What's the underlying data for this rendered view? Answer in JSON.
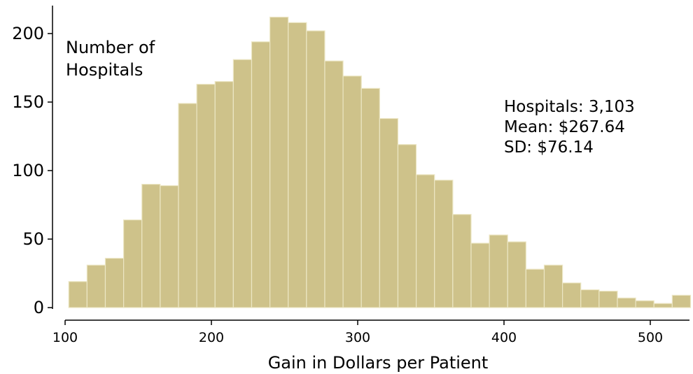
{
  "chart_data": {
    "type": "bar",
    "xlabel": "Gain in Dollars per Patient",
    "ylabel_lines": [
      "Number of",
      "Hospitals"
    ],
    "xlim": [
      100,
      525
    ],
    "ylim": [
      0,
      210
    ],
    "xticks": [
      100,
      200,
      300,
      400,
      500
    ],
    "yticks": [
      0,
      50,
      100,
      150,
      200
    ],
    "bin_start": 102.5,
    "bin_width": 12.5,
    "values": [
      19,
      31,
      36,
      64,
      90,
      89,
      149,
      163,
      165,
      181,
      194,
      212,
      208,
      202,
      180,
      169,
      160,
      138,
      119,
      97,
      93,
      68,
      47,
      53,
      48,
      28,
      31,
      18,
      13,
      12,
      7,
      5,
      3,
      9
    ],
    "annotations": [
      "Hospitals: 3,103",
      "Mean: $267.64",
      "SD: $76.14"
    ]
  }
}
